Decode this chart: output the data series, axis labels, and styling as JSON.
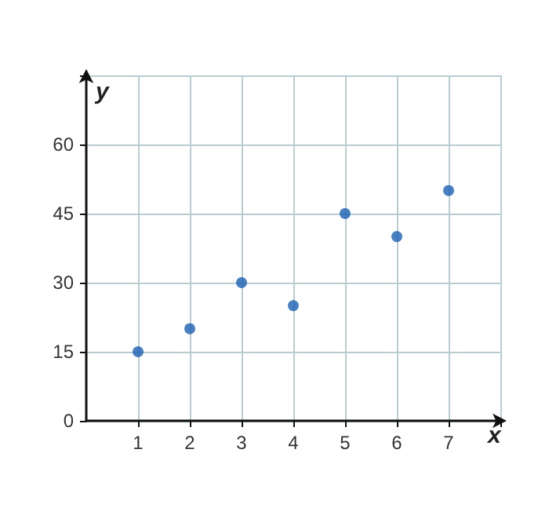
{
  "chart_data": {
    "type": "scatter",
    "xlabel": "x",
    "ylabel": "y",
    "x": [
      1,
      2,
      3,
      4,
      5,
      6,
      7
    ],
    "series": [
      {
        "color": "#1a5fb4",
        "values": [
          15,
          20,
          30,
          25,
          45,
          40,
          50
        ]
      }
    ],
    "xlim": [
      0,
      8
    ],
    "ylim": [
      0,
      75
    ],
    "xticks": [
      1,
      2,
      3,
      4,
      5,
      6,
      7,
      {
        "value": 8,
        "label": null
      }
    ],
    "yticks": [
      0,
      15,
      30,
      45,
      60,
      {
        "value": 75,
        "label": null
      }
    ],
    "grid": true,
    "marker": "circle"
  }
}
